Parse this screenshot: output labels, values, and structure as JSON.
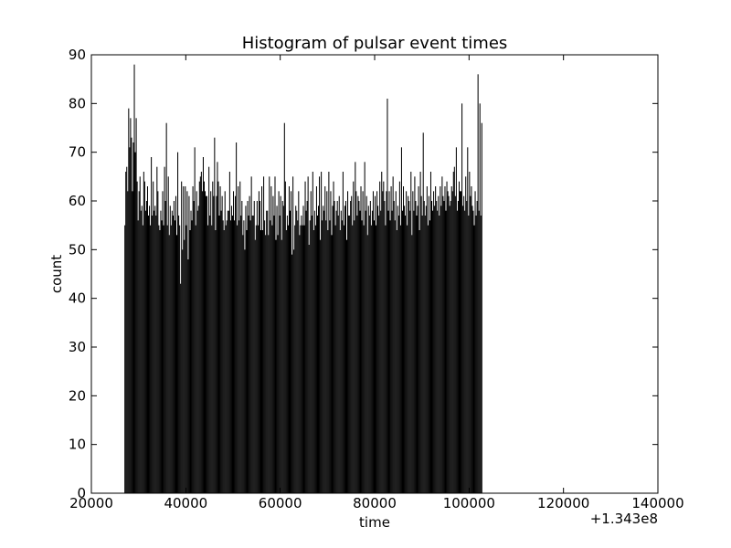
{
  "chart_data": {
    "type": "bar",
    "title": "Histogram of pulsar event times",
    "xlabel": "time",
    "ylabel": "count",
    "x_offset_label": "+1.343e8",
    "xlim": [
      20000,
      140000
    ],
    "ylim": [
      0,
      90
    ],
    "xticks": [
      20000,
      40000,
      60000,
      80000,
      100000,
      120000,
      140000
    ],
    "xtick_labels": [
      "20000",
      "40000",
      "60000",
      "80000",
      "100000",
      "120000",
      "140000"
    ],
    "yticks": [
      0,
      10,
      20,
      30,
      40,
      50,
      60,
      70,
      80,
      90
    ],
    "ytick_labels": [
      "0",
      "10",
      "20",
      "30",
      "40",
      "50",
      "60",
      "70",
      "80",
      "90"
    ],
    "grid": false,
    "bar_color": "#000000",
    "bin_width": 200,
    "bin_start": 27000,
    "series": [
      {
        "values": [
          55,
          66,
          67,
          62,
          79,
          71,
          77,
          73,
          62,
          72,
          88,
          70,
          77,
          64,
          56,
          62,
          65,
          58,
          59,
          55,
          66,
          64,
          58,
          60,
          63,
          57,
          59,
          55,
          69,
          57,
          64,
          58,
          59,
          57,
          67,
          62,
          55,
          54,
          58,
          56,
          62,
          55,
          67,
          60,
          76,
          55,
          65,
          53,
          59,
          55,
          58,
          57,
          60,
          56,
          61,
          53,
          70,
          57,
          55,
          43,
          64,
          50,
          63,
          52,
          63,
          55,
          62,
          48,
          61,
          54,
          58,
          56,
          63,
          60,
          71,
          55,
          62,
          58,
          59,
          64,
          65,
          66,
          62,
          69,
          64,
          62,
          61,
          61,
          55,
          67,
          57,
          62,
          55,
          64,
          61,
          73,
          54,
          61,
          68,
          64,
          57,
          63,
          58,
          61,
          56,
          54,
          62,
          55,
          56,
          58,
          58,
          66,
          56,
          59,
          57,
          62,
          56,
          61,
          72,
          55,
          63,
          56,
          64,
          57,
          60,
          53,
          56,
          50,
          59,
          54,
          60,
          57,
          61,
          56,
          65,
          57,
          57,
          60,
          52,
          55,
          60,
          55,
          62,
          60,
          54,
          63,
          54,
          65,
          56,
          53,
          58,
          58,
          53,
          65,
          56,
          63,
          55,
          61,
          57,
          65,
          52,
          59,
          53,
          62,
          57,
          61,
          52,
          60,
          59,
          76,
          64,
          54,
          57,
          55,
          63,
          58,
          62,
          49,
          65,
          50,
          55,
          59,
          58,
          56,
          62,
          53,
          55,
          57,
          55,
          59,
          55,
          64,
          58,
          60,
          65,
          51,
          56,
          62,
          57,
          66,
          54,
          58,
          55,
          63,
          57,
          59,
          65,
          52,
          66,
          56,
          59,
          58,
          63,
          56,
          62,
          54,
          66,
          56,
          62,
          53,
          59,
          64,
          60,
          55,
          58,
          60,
          57,
          61,
          54,
          58,
          56,
          66,
          55,
          59,
          60,
          52,
          62,
          57,
          57,
          60,
          61,
          55,
          64,
          56,
          68,
          62,
          57,
          61,
          60,
          58,
          63,
          56,
          62,
          55,
          68,
          58,
          61,
          53,
          59,
          57,
          60,
          55,
          58,
          62,
          56,
          61,
          55,
          62,
          59,
          57,
          64,
          58,
          66,
          62,
          64,
          60,
          55,
          62,
          81,
          58,
          62,
          56,
          63,
          58,
          65,
          60,
          56,
          62,
          54,
          59,
          57,
          64,
          55,
          71,
          58,
          63,
          59,
          57,
          62,
          55,
          61,
          60,
          58,
          66,
          53,
          62,
          58,
          65,
          60,
          57,
          59,
          63,
          54,
          66,
          61,
          57,
          74,
          60,
          57,
          59,
          63,
          55,
          61,
          56,
          66,
          60,
          58,
          62,
          59,
          63,
          60,
          58,
          61,
          57,
          63,
          59,
          65,
          61,
          60,
          63,
          58,
          64,
          62,
          61,
          59,
          60,
          63,
          62,
          66,
          67,
          61,
          71,
          58,
          60,
          64,
          62,
          62,
          80,
          59,
          61,
          58,
          65,
          60,
          71,
          57,
          66,
          61,
          63,
          59,
          58,
          55,
          62,
          57,
          60,
          86,
          58,
          80,
          57,
          76
        ]
      }
    ]
  }
}
